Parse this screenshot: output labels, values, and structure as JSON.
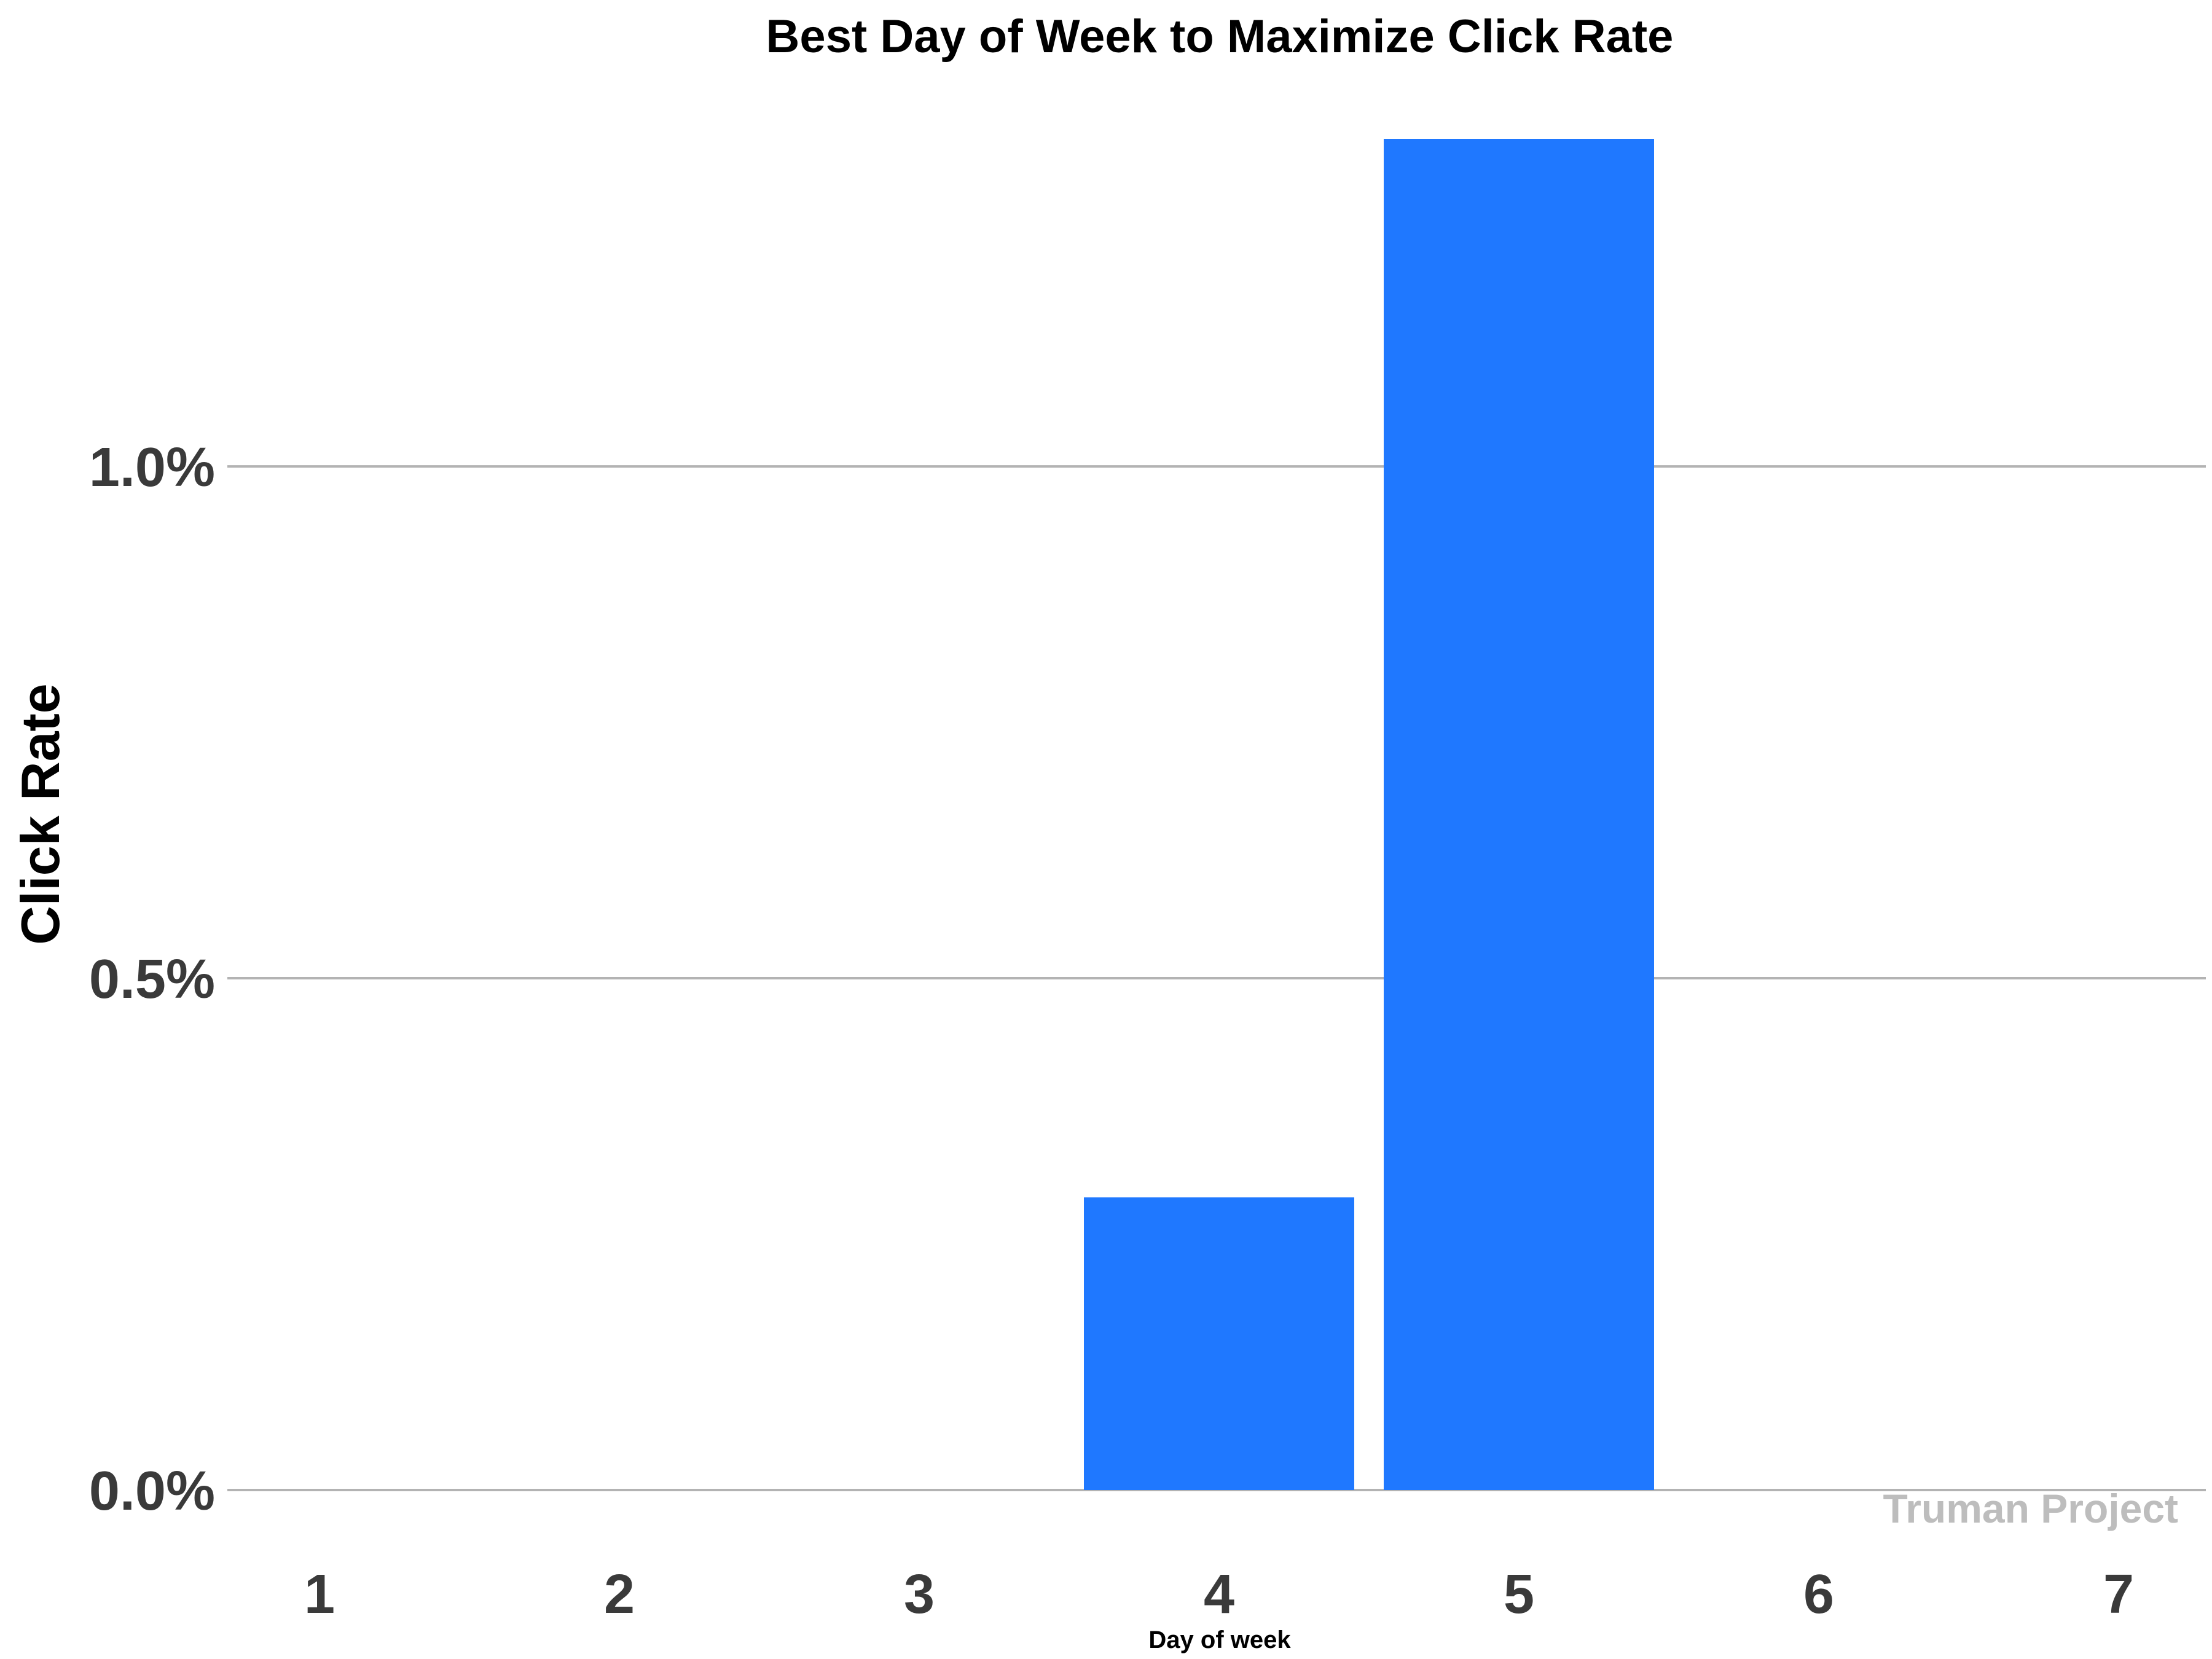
{
  "chart_data": {
    "type": "bar",
    "title": "Best Day of Week to Maximize Click Rate",
    "xlabel": "Day of week",
    "ylabel": "Click Rate",
    "categories": [
      "1",
      "2",
      "3",
      "4",
      "5",
      "6",
      "7"
    ],
    "values": [
      0,
      0,
      0,
      0.286,
      1.32,
      0,
      0
    ],
    "ylim": [
      0,
      1.32
    ],
    "yticks": [
      0,
      0.5,
      1.0
    ],
    "ytick_labels": [
      "0.0%",
      "0.5%",
      "1.0%"
    ],
    "grid": "horizontal",
    "bar_color": "#1f78ff",
    "grid_color": "#b3b3b3"
  },
  "watermark": "Truman Project"
}
